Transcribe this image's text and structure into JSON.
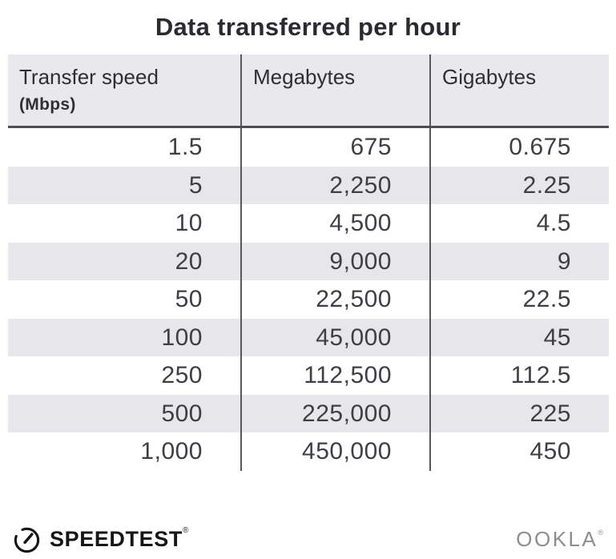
{
  "title": "Data transferred per hour",
  "table": {
    "columns": [
      {
        "label": "Transfer speed",
        "sublabel": "(Mbps)"
      },
      {
        "label": "Megabytes"
      },
      {
        "label": "Gigabytes"
      }
    ],
    "rows": [
      [
        "1.5",
        "675",
        "0.675"
      ],
      [
        "5",
        "2,250",
        "2.25"
      ],
      [
        "10",
        "4,500",
        "4.5"
      ],
      [
        "20",
        "9,000",
        "9"
      ],
      [
        "50",
        "22,500",
        "22.5"
      ],
      [
        "100",
        "45,000",
        "45"
      ],
      [
        "250",
        "112,500",
        "112.5"
      ],
      [
        "500",
        "225,000",
        "225"
      ],
      [
        "1,000",
        "450,000",
        "450"
      ]
    ]
  },
  "footer": {
    "speedtest": {
      "icon": "speedtest-gauge-icon",
      "label": "SPEEDTEST",
      "trademark": "®"
    },
    "ookla": {
      "label": "OOKLA",
      "trademark": "®"
    }
  },
  "colors": {
    "header_bg": "#e9e8ed",
    "row_stripe": "#e7e6eb",
    "divider": "#57575c",
    "header_rule": "#4d4d52",
    "title_text": "#2a2a30",
    "body_text": "#3e3e45",
    "speedtest_dark": "#161618",
    "ookla_gray": "#8e8e8e"
  },
  "chart_data": {
    "type": "table",
    "title": "Data transferred per hour",
    "columns": [
      "Transfer speed (Mbps)",
      "Megabytes",
      "Gigabytes"
    ],
    "rows": [
      [
        1.5,
        675,
        0.675
      ],
      [
        5,
        2250,
        2.25
      ],
      [
        10,
        4500,
        4.5
      ],
      [
        20,
        9000,
        9
      ],
      [
        50,
        22500,
        22.5
      ],
      [
        100,
        45000,
        45
      ],
      [
        250,
        112500,
        112.5
      ],
      [
        500,
        225000,
        225
      ],
      [
        1000,
        450000,
        450
      ]
    ]
  }
}
